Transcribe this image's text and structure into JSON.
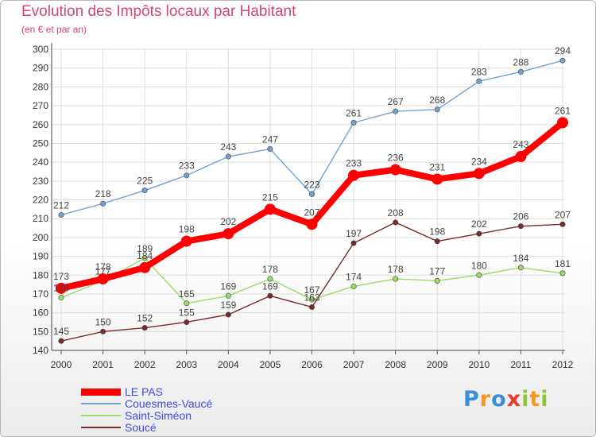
{
  "title": "Evolution des Impôts locaux par Habitant",
  "subtitle": "(en € et par an)",
  "chart_data": {
    "type": "line",
    "x": [
      "2000",
      "2001",
      "2002",
      "2003",
      "2004",
      "2005",
      "2006",
      "2007",
      "2008",
      "2009",
      "2010",
      "2011",
      "2012"
    ],
    "ylim": [
      140,
      300
    ],
    "yticks": [
      140,
      150,
      160,
      170,
      180,
      190,
      200,
      210,
      220,
      230,
      240,
      250,
      260,
      270,
      280,
      290,
      300
    ],
    "grid": true,
    "legend_position": "bottom-left",
    "series": [
      {
        "name": "LE PAS",
        "color": "#ff0000",
        "values": [
          173,
          178,
          184,
          198,
          202,
          215,
          207,
          233,
          236,
          231,
          234,
          243,
          261
        ],
        "labels": [
          "173",
          "178",
          "184",
          "198",
          "202",
          "215",
          "207",
          "233",
          "236",
          "231",
          "234",
          "243",
          "261"
        ]
      },
      {
        "name": "Couesmes-Vaucé",
        "color": "#6fa3d4",
        "values": [
          212,
          218,
          225,
          233,
          243,
          247,
          223,
          261,
          267,
          268,
          283,
          288,
          294
        ],
        "labels": [
          "212",
          "218",
          "225",
          "233",
          "243",
          "247",
          "223",
          "261",
          "267",
          "268",
          "283",
          "288",
          "294"
        ]
      },
      {
        "name": "Saint-Siméon",
        "color": "#99dd66",
        "values": [
          168,
          177,
          189,
          165,
          169,
          178,
          167,
          174,
          178,
          177,
          180,
          184,
          181
        ],
        "labels": [
          "168",
          "177",
          "189",
          "165",
          "169",
          "178",
          "167",
          "174",
          "178",
          "177",
          "180",
          "184",
          "181"
        ]
      },
      {
        "name": "Soucé",
        "color": "#7a2a2a",
        "values": [
          145,
          150,
          152,
          155,
          159,
          169,
          163,
          197,
          208,
          198,
          202,
          206,
          207
        ],
        "labels": [
          "145",
          "150",
          "152",
          "155",
          "159",
          "169",
          "163",
          "197",
          "208",
          "198",
          "202",
          "206",
          "207"
        ]
      }
    ]
  },
  "logo": {
    "letters": [
      {
        "ch": "P",
        "color": "#3a8fd8"
      },
      {
        "ch": "r",
        "color": "#f39a1e"
      },
      {
        "ch": "o",
        "color": "#3a8fd8"
      },
      {
        "ch": "x",
        "color": "#e83a2a"
      },
      {
        "ch": "i",
        "color": "#8cc63f"
      },
      {
        "ch": "t",
        "color": "#f39a1e"
      },
      {
        "ch": "i",
        "color": "#8cc63f"
      }
    ]
  }
}
